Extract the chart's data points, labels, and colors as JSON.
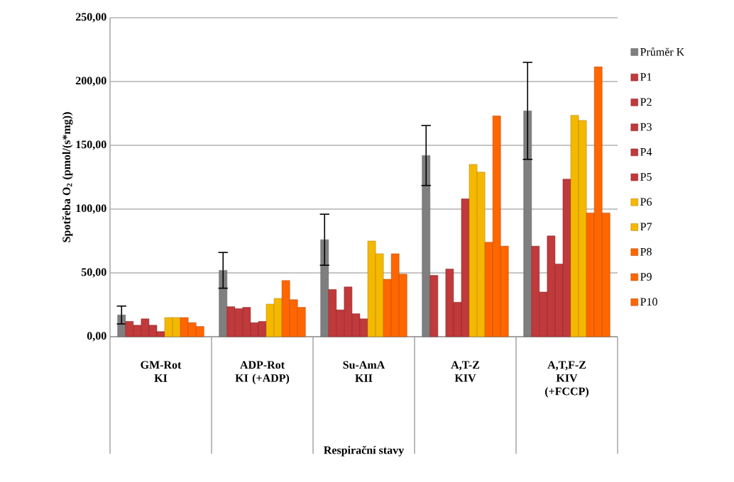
{
  "chart_data": {
    "type": "bar",
    "xlabel": "Respirační stavy",
    "ylabel": "Spotřeba O$_{2}$  (pmol/(s*mg))",
    "categories": [
      "GM-Rot\nKI",
      "ADP-Rot\nKI (+ADP)",
      "Su-AmA\nKII",
      "A,T-Z\nKIV",
      "A,T,F-Z\nKIV (+FCCP)"
    ],
    "series": [
      {
        "name": "Průměr K",
        "color": "#7f7f7f",
        "values": [
          17,
          52,
          76,
          142,
          177
        ],
        "errors": [
          7,
          14,
          20,
          23.5,
          38
        ]
      },
      {
        "name": "P1",
        "color": "#c0393b",
        "values": [
          12,
          23.5,
          37,
          48,
          71
        ]
      },
      {
        "name": "P2",
        "color": "#c0393b",
        "values": [
          9,
          22,
          21,
          null,
          35
        ]
      },
      {
        "name": "P3",
        "color": "#c0393b",
        "values": [
          14,
          23,
          39,
          53,
          79
        ]
      },
      {
        "name": "P4",
        "color": "#c0393b",
        "values": [
          9,
          11,
          18,
          27,
          57
        ]
      },
      {
        "name": "P5",
        "color": "#c0393b",
        "values": [
          4,
          12,
          14,
          108,
          123.5
        ]
      },
      {
        "name": "P6",
        "color": "#f5b800",
        "values": [
          15,
          25.5,
          75,
          135,
          173.5
        ]
      },
      {
        "name": "P7",
        "color": "#f5b800",
        "values": [
          15,
          30,
          65,
          129,
          169.5
        ]
      },
      {
        "name": "P8",
        "color": "#ff6600",
        "values": [
          15,
          44,
          45,
          74,
          97
        ]
      },
      {
        "name": "P9",
        "color": "#ff6600",
        "values": [
          11,
          29,
          65,
          173,
          211.5
        ]
      },
      {
        "name": "P10",
        "color": "#ff6600",
        "values": [
          8,
          23,
          49,
          71,
          97
        ]
      }
    ],
    "ylim": [
      0,
      250
    ],
    "yticks": [
      {
        "value": 0,
        "label": "0,00"
      },
      {
        "value": 50,
        "label": "50,00"
      },
      {
        "value": 100,
        "label": "100,00"
      },
      {
        "value": 150,
        "label": "150,00"
      },
      {
        "value": 200,
        "label": "200,00"
      },
      {
        "value": 250,
        "label": "250,00"
      }
    ],
    "grid": "y",
    "legend": "right"
  }
}
